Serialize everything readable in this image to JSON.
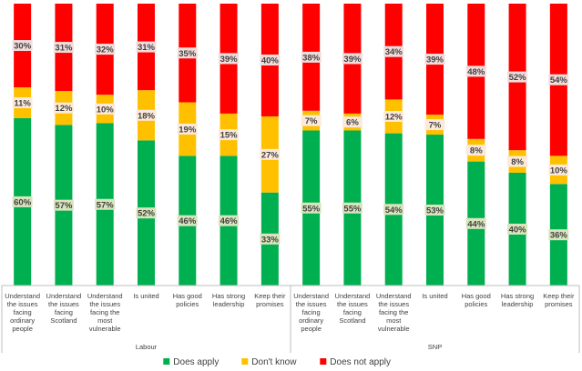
{
  "chart_data": {
    "type": "bar",
    "stacked": true,
    "percent_stacked": true,
    "groups": [
      {
        "name": "Labour",
        "categories": [
          "Understand the issues facing ordinary people",
          "Understand the issues facing Scotland",
          "Understand the issues facing the most vulnerable",
          "Is united",
          "Has good policies",
          "Has strong leadership",
          "Keep their promises"
        ],
        "series": [
          {
            "name": "Does apply",
            "color": "#00B050",
            "values": [
              60,
              57,
              57,
              52,
              46,
              46,
              33
            ]
          },
          {
            "name": "Don't know",
            "color": "#FFC000",
            "values": [
              11,
              12,
              10,
              18,
              19,
              15,
              27
            ]
          },
          {
            "name": "Does not apply",
            "color": "#FF0000",
            "values": [
              30,
              31,
              32,
              31,
              35,
              39,
              40
            ]
          }
        ]
      },
      {
        "name": "SNP",
        "categories": [
          "Understand the issues facing ordinary people",
          "Understand the issues facing Scotland",
          "Understand the issues facing the most vulnerable",
          "Is united",
          "Has good policies",
          "Has strong leadership",
          "Keep their promises"
        ],
        "series": [
          {
            "name": "Does apply",
            "color": "#00B050",
            "values": [
              55,
              55,
              54,
              53,
              44,
              40,
              36
            ]
          },
          {
            "name": "Don't know",
            "color": "#FFC000",
            "values": [
              7,
              6,
              12,
              7,
              8,
              8,
              10
            ]
          },
          {
            "name": "Does not apply",
            "color": "#FF0000",
            "values": [
              38,
              39,
              34,
              39,
              48,
              52,
              54
            ]
          }
        ]
      }
    ],
    "legend": {
      "position": "bottom",
      "items": [
        {
          "name": "Does apply",
          "color": "#00B050"
        },
        {
          "name": "Don't know",
          "color": "#FFC000"
        },
        {
          "name": "Does not apply",
          "color": "#FF0000"
        }
      ]
    },
    "label_fills": {
      "Does apply": "#D8E4BC",
      "Don't know": "#FDE9D9",
      "Does not apply": "#F2DCDB"
    },
    "gridlines": false,
    "title": "",
    "xlabel": "",
    "ylabel": ""
  }
}
